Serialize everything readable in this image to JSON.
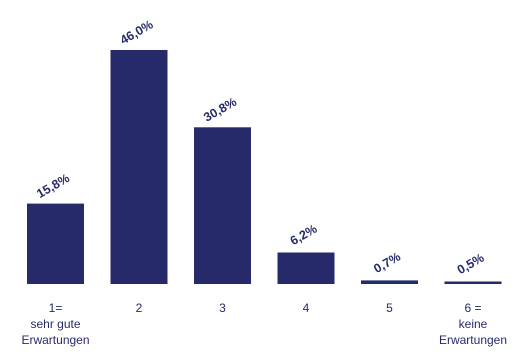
{
  "chart_data": {
    "type": "bar",
    "categories": [
      [
        "1=",
        "sehr gute",
        "Erwartungen"
      ],
      [
        "2"
      ],
      [
        "3"
      ],
      [
        "4"
      ],
      [
        "5"
      ],
      [
        "6 =",
        "keine",
        "Erwartungen"
      ]
    ],
    "values": [
      15.8,
      46.0,
      30.8,
      6.2,
      0.7,
      0.5
    ],
    "value_labels": [
      "15,8%",
      "46,0%",
      "30,8%",
      "6,2%",
      "0,7%",
      "0,5%"
    ],
    "ylim": [
      0,
      50
    ],
    "grid": false,
    "legend": false,
    "bar_color": "#262a6b",
    "text_color": "#262a6b"
  }
}
